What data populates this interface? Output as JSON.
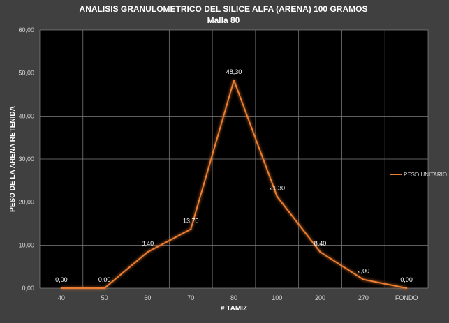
{
  "chart_data": {
    "type": "line",
    "title": "ANALISIS GRANULOMETRICO DEL SILICE ALFA (ARENA) 100 GRAMOS",
    "subtitle": "Malla 80",
    "xlabel": "# TAMIZ",
    "ylabel": "PESO DE LA ARENA RETENIDA",
    "categories": [
      "40",
      "50",
      "60",
      "70",
      "80",
      "100",
      "200",
      "270",
      "FONDO"
    ],
    "series": [
      {
        "name": "PESO UNITARIO",
        "values": [
          0.0,
          0.0,
          8.4,
          13.7,
          48.3,
          21.3,
          8.4,
          2.0,
          0.0
        ],
        "labels": [
          "0,00",
          "0,00",
          "8,40",
          "13,70",
          "48,30",
          "21,30",
          "8,40",
          "2,00",
          "0,00"
        ],
        "color": "#ed7d31"
      }
    ],
    "yticks": [
      "0,00",
      "10,00",
      "20,00",
      "30,00",
      "40,00",
      "50,00",
      "60,00"
    ],
    "ylim": [
      0,
      60
    ],
    "grid": true,
    "legend": "right",
    "colors": {
      "background": "#404040",
      "plot_area": "#000000",
      "grid": "#7f7f7f"
    }
  }
}
